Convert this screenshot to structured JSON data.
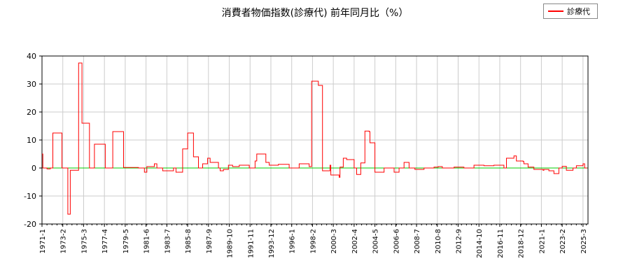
{
  "chart_data": {
    "type": "line",
    "title": "消費者物価指数(診療代) 前年同月比（%）",
    "xlabel": "",
    "ylabel": "",
    "ylim": [
      -20,
      40
    ],
    "yticks": [
      -20,
      -10,
      0,
      10,
      20,
      30,
      40
    ],
    "grid": true,
    "legend_position": "top-right",
    "zero_line_color": "#00cc00",
    "tick_labels": [
      "1971-1",
      "1973-2",
      "1975-3",
      "1977-4",
      "1979-5",
      "1981-6",
      "1983-7",
      "1985-8",
      "1987-9",
      "1989-10",
      "1991-11",
      "1993-12",
      "1996-1",
      "1998-2",
      "2000-3",
      "2002-4",
      "2004-5",
      "2006-6",
      "2008-7",
      "2010-8",
      "2012-9",
      "2014-10",
      "2016-11",
      "2018-12",
      "2021-1",
      "2023-2",
      "2025-3"
    ],
    "series": [
      {
        "name": "診療代",
        "color": "#ff0000",
        "points": [
          [
            "1971-1",
            5
          ],
          [
            "1971-2",
            0
          ],
          [
            "1971-7",
            -0.3
          ],
          [
            "1971-11",
            0
          ],
          [
            "1972-2",
            12.5
          ],
          [
            "1972-12",
            12.5
          ],
          [
            "1973-1",
            0
          ],
          [
            "1973-7",
            0
          ],
          [
            "1973-8",
            -16.5
          ],
          [
            "1973-11",
            -0.8
          ],
          [
            "1974-8",
            -0.8
          ],
          [
            "1974-9",
            37.5
          ],
          [
            "1975-1",
            16
          ],
          [
            "1975-9",
            16
          ],
          [
            "1975-10",
            0
          ],
          [
            "1976-3",
            0
          ],
          [
            "1976-4",
            8.5
          ],
          [
            "1977-4",
            8.5
          ],
          [
            "1977-5",
            0
          ],
          [
            "1978-1",
            0
          ],
          [
            "1978-2",
            13
          ],
          [
            "1979-2",
            13
          ],
          [
            "1979-3",
            0.2
          ],
          [
            "1980-6",
            0.2
          ],
          [
            "1980-9",
            0
          ],
          [
            "1981-3",
            0
          ],
          [
            "1981-4",
            -1.5
          ],
          [
            "1981-7",
            0.5
          ],
          [
            "1982-3",
            0.5
          ],
          [
            "1982-4",
            1.5
          ],
          [
            "1982-7",
            0
          ],
          [
            "1983-1",
            0
          ],
          [
            "1983-2",
            -1
          ],
          [
            "1984-1",
            -1
          ],
          [
            "1984-3",
            0
          ],
          [
            "1984-6",
            -1.5
          ],
          [
            "1985-1",
            -1.5
          ],
          [
            "1985-2",
            6.8
          ],
          [
            "1985-7",
            6.8
          ],
          [
            "1985-8",
            12.5
          ],
          [
            "1986-2",
            12.5
          ],
          [
            "1986-3",
            4
          ],
          [
            "1986-8",
            4
          ],
          [
            "1986-9",
            0
          ],
          [
            "1987-2",
            1.5
          ],
          [
            "1987-7",
            1.5
          ],
          [
            "1987-8",
            3.5
          ],
          [
            "1987-11",
            2
          ],
          [
            "1988-8",
            2
          ],
          [
            "1988-9",
            0
          ],
          [
            "1988-11",
            -1
          ],
          [
            "1989-3",
            -0.5
          ],
          [
            "1989-8",
            -0.5
          ],
          [
            "1989-9",
            1
          ],
          [
            "1990-2",
            0.5
          ],
          [
            "1990-9",
            0.5
          ],
          [
            "1990-10",
            1
          ],
          [
            "1991-9",
            1
          ],
          [
            "1991-10",
            0
          ],
          [
            "1992-4",
            0
          ],
          [
            "1992-5",
            2.5
          ],
          [
            "1992-7",
            5
          ],
          [
            "1993-5",
            5
          ],
          [
            "1993-6",
            2
          ],
          [
            "1993-10",
            1
          ],
          [
            "1994-8",
            1
          ],
          [
            "1994-9",
            1.3
          ],
          [
            "1995-9",
            1.3
          ],
          [
            "1995-10",
            0
          ],
          [
            "1996-9",
            0
          ],
          [
            "1996-10",
            1.5
          ],
          [
            "1997-9",
            1.5
          ],
          [
            "1997-10",
            0.5
          ],
          [
            "1997-12",
            0.5
          ],
          [
            "1998-1",
            31
          ],
          [
            "1998-8",
            31
          ],
          [
            "1998-9",
            29.5
          ],
          [
            "1999-1",
            29.5
          ],
          [
            "1999-2",
            -1
          ],
          [
            "1999-9",
            -1
          ],
          [
            "1999-11",
            1
          ],
          [
            "1999-12",
            -2.5
          ],
          [
            "2000-9",
            -2.5
          ],
          [
            "2000-10",
            -3.3
          ],
          [
            "2000-11",
            0.3
          ],
          [
            "2001-2",
            0.3
          ],
          [
            "2001-3",
            3.5
          ],
          [
            "2001-7",
            3
          ],
          [
            "2002-3",
            3
          ],
          [
            "2002-4",
            0
          ],
          [
            "2002-7",
            -2.3
          ],
          [
            "2002-11",
            -2.3
          ],
          [
            "2002-12",
            1.8
          ],
          [
            "2003-4",
            1.8
          ],
          [
            "2003-5",
            13.2
          ],
          [
            "2003-10",
            13
          ],
          [
            "2003-11",
            9
          ],
          [
            "2004-4",
            9
          ],
          [
            "2004-5",
            -1.5
          ],
          [
            "2005-3",
            -1.5
          ],
          [
            "2005-4",
            0
          ],
          [
            "2006-3",
            0
          ],
          [
            "2006-4",
            -1.5
          ],
          [
            "2006-9",
            -1.5
          ],
          [
            "2006-10",
            0
          ],
          [
            "2007-3",
            0
          ],
          [
            "2007-4",
            2
          ],
          [
            "2007-9",
            2
          ],
          [
            "2007-10",
            0
          ],
          [
            "2008-4",
            0
          ],
          [
            "2008-5",
            -0.5
          ],
          [
            "2009-3",
            -0.5
          ],
          [
            "2009-4",
            0
          ],
          [
            "2010-3",
            0
          ],
          [
            "2010-4",
            0.3
          ],
          [
            "2010-9",
            0.5
          ],
          [
            "2011-2",
            0
          ],
          [
            "2012-3",
            0
          ],
          [
            "2012-4",
            0.3
          ],
          [
            "2013-3",
            0.3
          ],
          [
            "2013-4",
            0
          ],
          [
            "2014-3",
            0
          ],
          [
            "2014-4",
            1
          ],
          [
            "2015-3",
            1
          ],
          [
            "2015-4",
            0.8
          ],
          [
            "2016-3",
            0.8
          ],
          [
            "2016-4",
            1
          ],
          [
            "2017-3",
            1
          ],
          [
            "2017-4",
            0
          ],
          [
            "2017-7",
            3.5
          ],
          [
            "2018-3",
            3.5
          ],
          [
            "2018-4",
            4.3
          ],
          [
            "2018-7",
            2.5
          ],
          [
            "2019-3",
            2.3
          ],
          [
            "2019-4",
            1.5
          ],
          [
            "2019-9",
            0.3
          ],
          [
            "2020-3",
            0.3
          ],
          [
            "2020-4",
            -0.5
          ],
          [
            "2021-3",
            -0.8
          ],
          [
            "2021-4",
            -0.5
          ],
          [
            "2021-10",
            -1
          ],
          [
            "2022-3",
            -1
          ],
          [
            "2022-4",
            -2
          ],
          [
            "2022-9",
            -2
          ],
          [
            "2022-10",
            0
          ],
          [
            "2023-1",
            0
          ],
          [
            "2023-2",
            0.6
          ],
          [
            "2023-6",
            0.6
          ],
          [
            "2023-7",
            -0.8
          ],
          [
            "2024-2",
            -0.8
          ],
          [
            "2024-3",
            0
          ],
          [
            "2024-6",
            0
          ],
          [
            "2024-7",
            0.8
          ],
          [
            "2025-2",
            0.8
          ],
          [
            "2025-3",
            1.5
          ],
          [
            "2025-5",
            0
          ],
          [
            "2025-8",
            0
          ]
        ]
      }
    ]
  }
}
